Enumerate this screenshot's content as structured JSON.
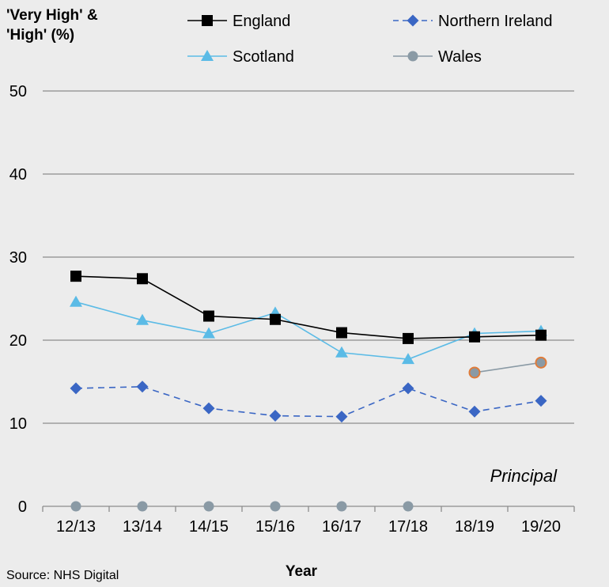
{
  "chart_data": {
    "type": "line",
    "ylabel_line1": "'Very High' &",
    "ylabel_line2": "'High' (%)",
    "xlabel": "Year",
    "source": "Source: NHS Digital",
    "annotation": "Principal",
    "categories": [
      "12/13",
      "13/14",
      "14/15",
      "15/16",
      "16/17",
      "17/18",
      "18/19",
      "19/20"
    ],
    "ylim": [
      0,
      50
    ],
    "yticks": [
      0,
      10,
      20,
      30,
      40,
      50
    ],
    "grid": true,
    "legend_position": "top",
    "series": [
      {
        "name": "England",
        "color": "#000000",
        "marker": "square",
        "dash": false,
        "values": [
          27.7,
          27.4,
          22.9,
          22.5,
          20.9,
          20.2,
          20.4,
          20.6
        ]
      },
      {
        "name": "Northern Ireland",
        "color": "#3a66c4",
        "marker": "diamond",
        "dash": true,
        "values": [
          14.2,
          14.4,
          11.8,
          10.9,
          10.8,
          14.2,
          11.4,
          12.7
        ]
      },
      {
        "name": "Scotland",
        "color": "#5bbbe6",
        "marker": "triangle",
        "dash": false,
        "values": [
          24.6,
          22.4,
          20.8,
          23.3,
          18.5,
          17.7,
          20.8,
          21.1
        ]
      },
      {
        "name": "Wales",
        "color": "#8a9aa5",
        "marker": "circle",
        "dash": false,
        "highlight_color": "#e07b39",
        "values": [
          0,
          0,
          0,
          0,
          0,
          0,
          16.1,
          17.3
        ],
        "connected_from_index": 6,
        "highlighted_indices": [
          6,
          7
        ]
      }
    ]
  }
}
